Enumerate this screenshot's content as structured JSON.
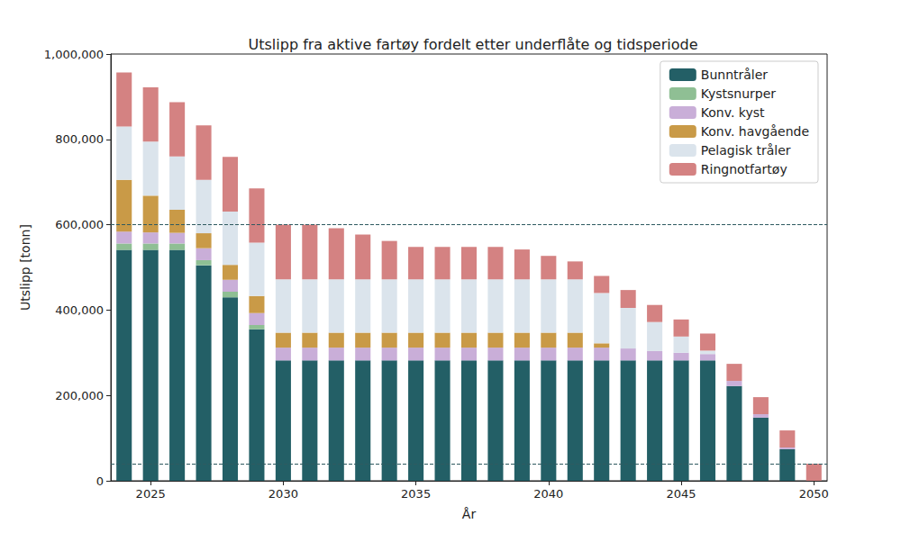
{
  "chart_data": {
    "type": "bar",
    "title": "Utslipp fra aktive fartøy fordelt etter underflåte og tidsperiode",
    "x_label": "År",
    "y_label": "Utslipp [tonn]",
    "categories": [
      null,
      "2025",
      null,
      null,
      null,
      null,
      "2030",
      null,
      null,
      null,
      null,
      "2035",
      null,
      null,
      null,
      null,
      "2040",
      null,
      null,
      null,
      null,
      "2045",
      null,
      null,
      null,
      null,
      "2050"
    ],
    "stacked": true,
    "legend": "upper right",
    "grid": false,
    "ylim": [
      0,
      1000000
    ],
    "yticks": [
      0,
      {
        "value": 200000,
        "label": "200,000"
      },
      {
        "value": 400000,
        "label": "400,000"
      },
      {
        "value": 600000,
        "label": "600,000"
      },
      {
        "value": 800000,
        "label": "800,000"
      },
      {
        "value": 1000000,
        "label": "1,000,000"
      }
    ],
    "reference_lines": {
      "values": [
        600000,
        40000
      ],
      "color": "#2f5a60",
      "line_style": "dashed"
    },
    "series": [
      {
        "name": "Bunntråler",
        "color": "#235f66",
        "values": [
          541000,
          541000,
          541000,
          505000,
          430000,
          355000,
          282000,
          282000,
          282000,
          282000,
          282000,
          282000,
          282000,
          282000,
          282000,
          282000,
          282000,
          282000,
          282000,
          282000,
          282000,
          282000,
          282000,
          222000,
          148000,
          74000,
          0
        ]
      },
      {
        "name": "Kystsnurper",
        "color": "#8fbf94",
        "values": [
          15000,
          15000,
          15000,
          12000,
          13000,
          10000,
          0,
          0,
          0,
          0,
          0,
          0,
          0,
          0,
          0,
          0,
          0,
          0,
          0,
          0,
          0,
          0,
          0,
          0,
          0,
          0,
          0
        ]
      },
      {
        "name": "Konv. kyst",
        "color": "#c9aed8",
        "values": [
          28000,
          26000,
          25000,
          28000,
          28000,
          28000,
          30000,
          30000,
          30000,
          30000,
          30000,
          30000,
          30000,
          30000,
          30000,
          30000,
          30000,
          30000,
          30000,
          28000,
          22000,
          18000,
          15000,
          12000,
          8000,
          4000,
          0
        ]
      },
      {
        "name": "Konv. havgående",
        "color": "#c99a47",
        "values": [
          121000,
          86000,
          54000,
          35000,
          35000,
          40000,
          35000,
          35000,
          35000,
          35000,
          35000,
          35000,
          35000,
          35000,
          35000,
          35000,
          35000,
          35000,
          10000,
          0,
          0,
          0,
          0,
          0,
          0,
          0,
          0
        ]
      },
      {
        "name": "Pelagisk tråler",
        "color": "#dbe4ec",
        "values": [
          125000,
          127000,
          125000,
          125000,
          125000,
          125000,
          125000,
          125000,
          125000,
          125000,
          125000,
          125000,
          125000,
          125000,
          125000,
          125000,
          125000,
          125000,
          118000,
          95000,
          68000,
          38000,
          8000,
          0,
          0,
          0,
          0
        ]
      },
      {
        "name": "Ringnotfartøy",
        "color": "#d48282",
        "values": [
          127000,
          127000,
          127000,
          128000,
          128000,
          127000,
          128000,
          128000,
          120000,
          105000,
          90000,
          76000,
          76000,
          76000,
          76000,
          70000,
          55000,
          42000,
          40000,
          42000,
          40000,
          40000,
          40000,
          40000,
          40000,
          40000,
          40000
        ]
      }
    ]
  }
}
